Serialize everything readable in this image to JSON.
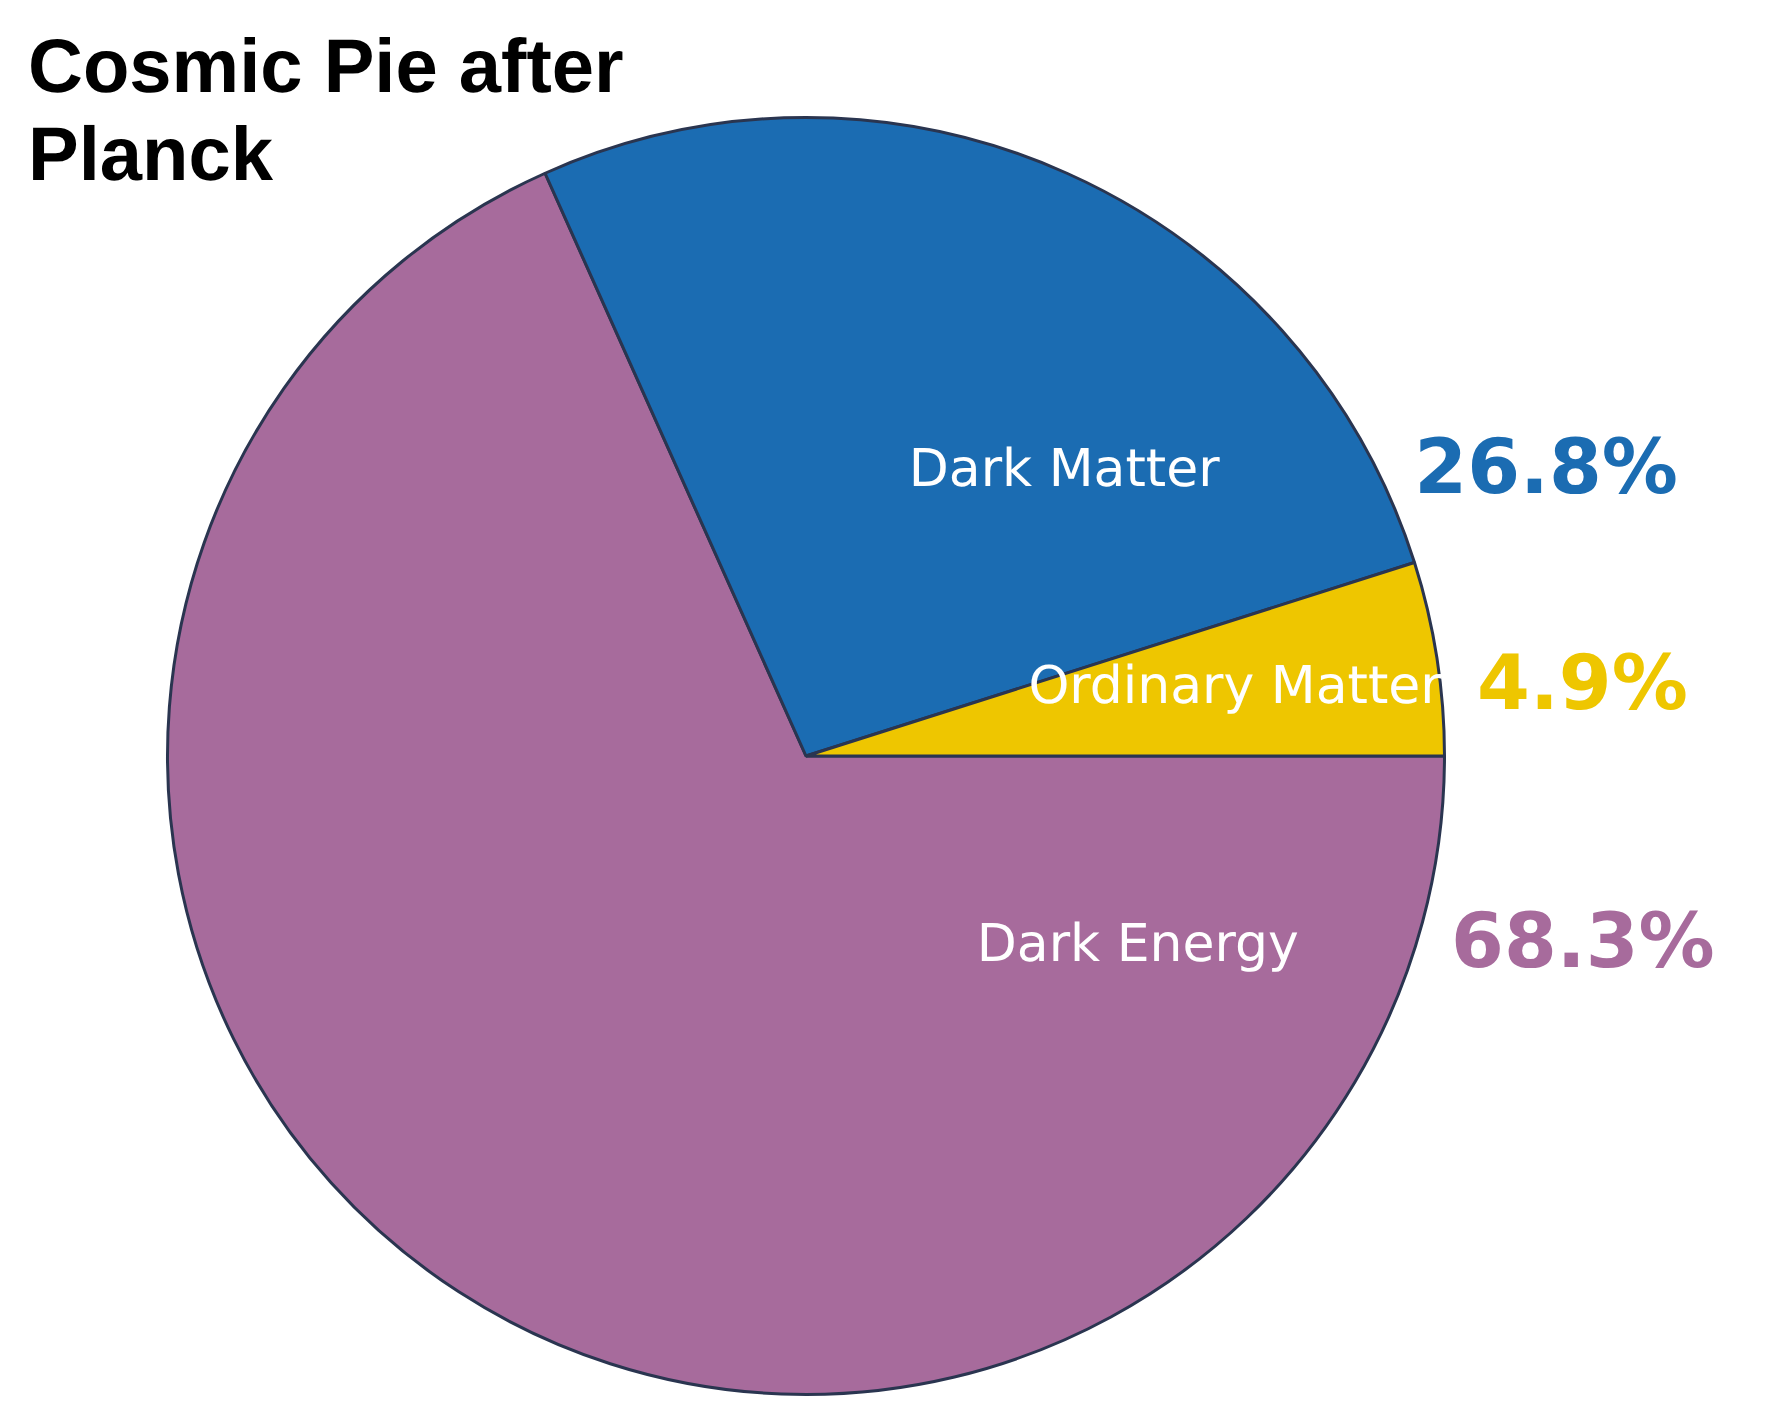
{
  "chart_data": {
    "type": "pie",
    "title": "Cosmic Pie after Planck",
    "categories": [
      "Dark Energy",
      "Dark Matter",
      "Ordinary Matter"
    ],
    "values": [
      68.3,
      26.8,
      4.9
    ],
    "colors": [
      "#a76b9c",
      "#1b6cb2",
      "#eec600"
    ],
    "value_labels": [
      "68.3%",
      "26.8%",
      "4.9%"
    ],
    "legend": false
  }
}
